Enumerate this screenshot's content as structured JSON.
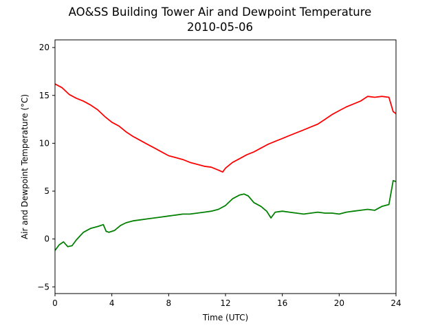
{
  "chart_data": {
    "type": "line",
    "title": "AO&SS Building Tower Air and Dewpoint Temperature",
    "subtitle": "2010-05-06",
    "xlabel": "Time (UTC)",
    "ylabel": "Air and Dewpoint Temperature (°C)",
    "xlim": [
      0,
      24
    ],
    "ylim": [
      -5.7,
      20.8
    ],
    "xticks": [
      0,
      4,
      8,
      12,
      16,
      20,
      24
    ],
    "yticks": [
      -5,
      0,
      5,
      10,
      15,
      20
    ],
    "grid": false,
    "series": [
      {
        "color": "#ff0000",
        "x": [
          0,
          0.5,
          1,
          1.5,
          2,
          2.5,
          3,
          3.5,
          4,
          4.5,
          5,
          5.5,
          6,
          6.5,
          7,
          7.5,
          8,
          8.5,
          9,
          9.5,
          10,
          10.5,
          11,
          11.5,
          11.8,
          12,
          12.5,
          13,
          13.5,
          14,
          14.5,
          15,
          15.5,
          16,
          16.5,
          17,
          17.5,
          18,
          18.5,
          19,
          19.5,
          20,
          20.5,
          21,
          21.5,
          22,
          22.5,
          23,
          23.5,
          23.8,
          24
        ],
        "y": [
          16.2,
          15.8,
          15.1,
          14.7,
          14.4,
          14.0,
          13.5,
          12.8,
          12.2,
          11.8,
          11.2,
          10.7,
          10.3,
          9.9,
          9.5,
          9.1,
          8.7,
          8.5,
          8.3,
          8.0,
          7.8,
          7.6,
          7.5,
          7.2,
          7.0,
          7.4,
          8.0,
          8.4,
          8.8,
          9.1,
          9.5,
          9.9,
          10.2,
          10.5,
          10.8,
          11.1,
          11.4,
          11.7,
          12.0,
          12.5,
          13.0,
          13.4,
          13.8,
          14.1,
          14.4,
          14.9,
          14.8,
          14.9,
          14.8,
          13.3,
          13.1
        ]
      },
      {
        "color": "#008000",
        "x": [
          0,
          0.3,
          0.6,
          0.9,
          1.2,
          1.5,
          2,
          2.5,
          3,
          3.4,
          3.6,
          3.8,
          4.2,
          4.6,
          5,
          5.5,
          6,
          6.5,
          7,
          7.5,
          8,
          8.5,
          9,
          9.5,
          10,
          10.5,
          11,
          11.5,
          12,
          12.5,
          13,
          13.3,
          13.6,
          14,
          14.5,
          14.9,
          15.2,
          15.5,
          16,
          16.5,
          17,
          17.5,
          18,
          18.5,
          19,
          19.5,
          20,
          20.5,
          21,
          21.5,
          22,
          22.5,
          23,
          23.5,
          23.8,
          24
        ],
        "y": [
          -1.2,
          -0.6,
          -0.3,
          -0.8,
          -0.7,
          -0.1,
          0.7,
          1.1,
          1.3,
          1.5,
          0.8,
          0.7,
          0.9,
          1.4,
          1.7,
          1.9,
          2.0,
          2.1,
          2.2,
          2.3,
          2.4,
          2.5,
          2.6,
          2.6,
          2.7,
          2.8,
          2.9,
          3.1,
          3.5,
          4.2,
          4.6,
          4.7,
          4.5,
          3.8,
          3.4,
          2.9,
          2.2,
          2.8,
          2.9,
          2.8,
          2.7,
          2.6,
          2.7,
          2.8,
          2.7,
          2.7,
          2.6,
          2.8,
          2.9,
          3.0,
          3.1,
          3.0,
          3.4,
          3.6,
          6.1,
          6.0
        ]
      }
    ]
  }
}
